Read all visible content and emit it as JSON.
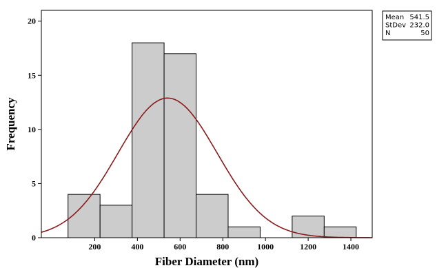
{
  "chart_data": {
    "type": "histogram",
    "xlabel": "Fiber Diameter (nm)",
    "ylabel": "Frequency",
    "xlim": [
      -50,
      1500
    ],
    "ylim": [
      0,
      21
    ],
    "xticks": [
      200,
      400,
      600,
      800,
      1000,
      1200,
      1400
    ],
    "yticks": [
      0,
      5,
      10,
      15,
      20
    ],
    "bin_width": 150,
    "bins": [
      {
        "start": 75,
        "end": 225,
        "count": 4
      },
      {
        "start": 225,
        "end": 375,
        "count": 3
      },
      {
        "start": 375,
        "end": 525,
        "count": 18
      },
      {
        "start": 525,
        "end": 675,
        "count": 17
      },
      {
        "start": 675,
        "end": 825,
        "count": 4
      },
      {
        "start": 825,
        "end": 975,
        "count": 1
      },
      {
        "start": 975,
        "end": 1125,
        "count": 0
      },
      {
        "start": 1125,
        "end": 1275,
        "count": 2
      },
      {
        "start": 1275,
        "end": 1425,
        "count": 1
      }
    ],
    "bar_color": "#cccccc",
    "curve": {
      "type": "normal_fit",
      "mean": 541.5,
      "stdev": 232.0,
      "n": 50,
      "color": "#8b1a1a"
    },
    "stats": [
      {
        "label": "Mean",
        "value": "541.5"
      },
      {
        "label": "StDev",
        "value": "232.0"
      },
      {
        "label": "N",
        "value": "50"
      }
    ]
  }
}
